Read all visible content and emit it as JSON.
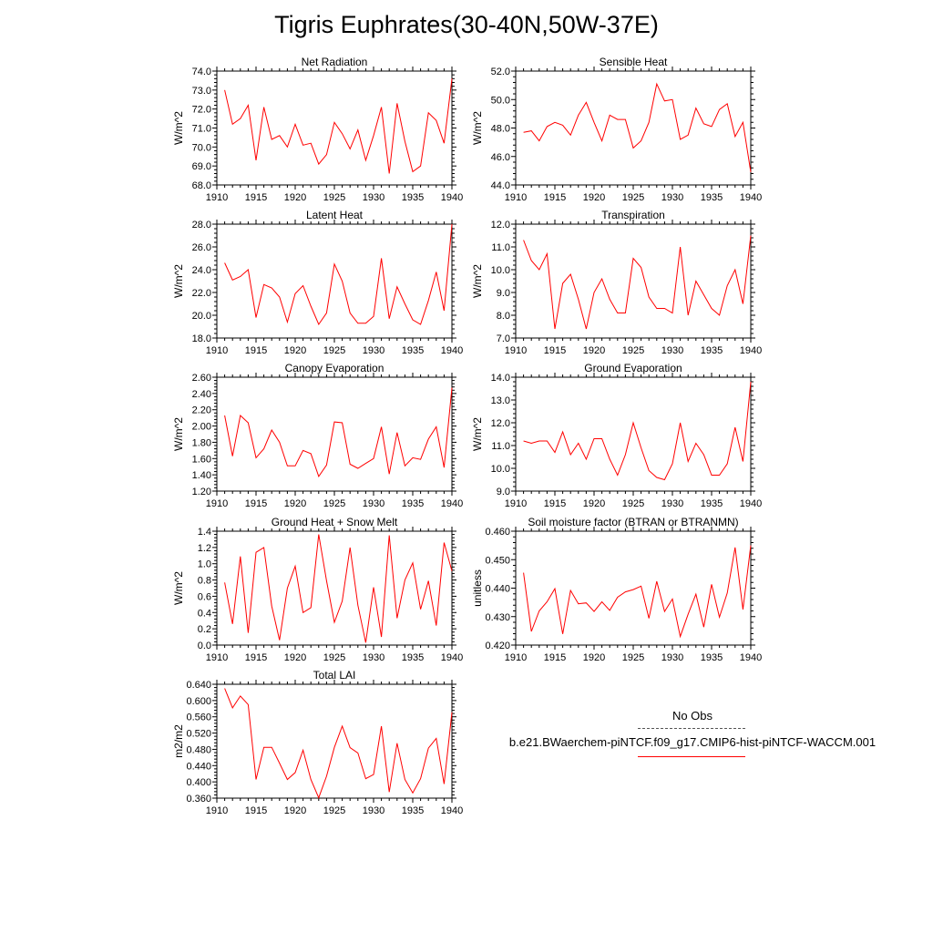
{
  "title": "Tigris Euphrates(30-40N,50W-37E)",
  "line_color": "#ff0000",
  "legend": {
    "obs_label": "No Obs",
    "case_label": "b.e21.BWaerchem-piNTCF.f09_g17.CMIP6-hist-piNTCF-WACCM.001"
  },
  "chart_data": [
    {
      "type": "line",
      "title": "Net Radiation",
      "xlabel": "",
      "ylabel": "W/m^2",
      "xlim": [
        1910,
        1940
      ],
      "ylim": [
        68.0,
        74.0
      ],
      "xticks": [
        1910,
        1915,
        1920,
        1925,
        1930,
        1935,
        1940
      ],
      "yticks": [
        "68.0",
        "69.0",
        "70.0",
        "71.0",
        "72.0",
        "73.0",
        "74.0"
      ],
      "x": [
        1911,
        1912,
        1913,
        1914,
        1915,
        1916,
        1917,
        1918,
        1919,
        1920,
        1921,
        1922,
        1923,
        1924,
        1925,
        1926,
        1927,
        1928,
        1929,
        1930,
        1931,
        1932,
        1933,
        1934,
        1935,
        1936,
        1937,
        1938,
        1939,
        1940
      ],
      "values": [
        73.0,
        71.2,
        71.5,
        72.2,
        69.3,
        72.1,
        70.4,
        70.6,
        70.0,
        71.2,
        70.1,
        70.2,
        69.1,
        69.6,
        71.3,
        70.7,
        69.9,
        70.9,
        69.3,
        70.6,
        72.1,
        68.6,
        72.3,
        70.3,
        68.7,
        69.0,
        71.8,
        71.4,
        70.2,
        73.6
      ]
    },
    {
      "type": "line",
      "title": "Sensible Heat",
      "xlabel": "",
      "ylabel": "W/m^2",
      "xlim": [
        1910,
        1940
      ],
      "ylim": [
        44.0,
        52.0
      ],
      "xticks": [
        1910,
        1915,
        1920,
        1925,
        1930,
        1935,
        1940
      ],
      "yticks": [
        "44.0",
        "46.0",
        "48.0",
        "50.0",
        "52.0"
      ],
      "x": [
        1911,
        1912,
        1913,
        1914,
        1915,
        1916,
        1917,
        1918,
        1919,
        1920,
        1921,
        1922,
        1923,
        1924,
        1925,
        1926,
        1927,
        1928,
        1929,
        1930,
        1931,
        1932,
        1933,
        1934,
        1935,
        1936,
        1937,
        1938,
        1939,
        1940
      ],
      "values": [
        47.7,
        47.8,
        47.1,
        48.1,
        48.4,
        48.2,
        47.5,
        48.9,
        49.8,
        48.4,
        47.1,
        48.9,
        48.6,
        48.6,
        46.6,
        47.1,
        48.4,
        51.1,
        49.9,
        50.0,
        47.2,
        47.5,
        49.4,
        48.3,
        48.1,
        49.3,
        49.7,
        47.4,
        48.4,
        44.9
      ]
    },
    {
      "type": "line",
      "title": "Latent Heat",
      "xlabel": "",
      "ylabel": "W/m^2",
      "xlim": [
        1910,
        1940
      ],
      "ylim": [
        18.0,
        28.0
      ],
      "xticks": [
        1910,
        1915,
        1920,
        1925,
        1930,
        1935,
        1940
      ],
      "yticks": [
        "18.0",
        "20.0",
        "22.0",
        "24.0",
        "26.0",
        "28.0"
      ],
      "x": [
        1911,
        1912,
        1913,
        1914,
        1915,
        1916,
        1917,
        1918,
        1919,
        1920,
        1921,
        1922,
        1923,
        1924,
        1925,
        1926,
        1927,
        1928,
        1929,
        1930,
        1931,
        1932,
        1933,
        1934,
        1935,
        1936,
        1937,
        1938,
        1939,
        1940
      ],
      "values": [
        24.6,
        23.1,
        23.4,
        24.0,
        19.8,
        22.7,
        22.4,
        21.6,
        19.4,
        21.9,
        22.6,
        20.8,
        19.2,
        20.2,
        24.5,
        23.0,
        20.2,
        19.3,
        19.3,
        19.9,
        25.0,
        19.7,
        22.5,
        21.0,
        19.6,
        19.2,
        21.3,
        23.8,
        20.4,
        28.0
      ]
    },
    {
      "type": "line",
      "title": "Transpiration",
      "xlabel": "",
      "ylabel": "W/m^2",
      "xlim": [
        1910,
        1940
      ],
      "ylim": [
        7.0,
        12.0
      ],
      "xticks": [
        1910,
        1915,
        1920,
        1925,
        1930,
        1935,
        1940
      ],
      "yticks": [
        "7.0",
        "8.0",
        "9.0",
        "10.0",
        "11.0",
        "12.0"
      ],
      "x": [
        1911,
        1912,
        1913,
        1914,
        1915,
        1916,
        1917,
        1918,
        1919,
        1920,
        1921,
        1922,
        1923,
        1924,
        1925,
        1926,
        1927,
        1928,
        1929,
        1930,
        1931,
        1932,
        1933,
        1934,
        1935,
        1936,
        1937,
        1938,
        1939,
        1940
      ],
      "values": [
        11.3,
        10.4,
        10.0,
        10.7,
        7.4,
        9.4,
        9.8,
        8.7,
        7.4,
        9.0,
        9.6,
        8.7,
        8.1,
        8.1,
        10.5,
        10.1,
        8.8,
        8.3,
        8.3,
        8.1,
        11.0,
        8.0,
        9.5,
        8.9,
        8.3,
        8.0,
        9.3,
        10.0,
        8.5,
        11.5
      ]
    },
    {
      "type": "line",
      "title": "Canopy Evaporation",
      "xlabel": "",
      "ylabel": "W/m^2",
      "xlim": [
        1910,
        1940
      ],
      "ylim": [
        1.2,
        2.6
      ],
      "xticks": [
        1910,
        1915,
        1920,
        1925,
        1930,
        1935,
        1940
      ],
      "yticks": [
        "1.20",
        "1.40",
        "1.60",
        "1.80",
        "2.00",
        "2.20",
        "2.40",
        "2.60"
      ],
      "x": [
        1911,
        1912,
        1913,
        1914,
        1915,
        1916,
        1917,
        1918,
        1919,
        1920,
        1921,
        1922,
        1923,
        1924,
        1925,
        1926,
        1927,
        1928,
        1929,
        1930,
        1931,
        1932,
        1933,
        1934,
        1935,
        1936,
        1937,
        1938,
        1939,
        1940
      ],
      "values": [
        2.13,
        1.63,
        2.13,
        2.04,
        1.61,
        1.72,
        1.95,
        1.8,
        1.51,
        1.51,
        1.7,
        1.66,
        1.38,
        1.52,
        2.05,
        2.04,
        1.53,
        1.48,
        1.54,
        1.6,
        1.99,
        1.41,
        1.92,
        1.51,
        1.61,
        1.59,
        1.84,
        1.99,
        1.49,
        2.47
      ]
    },
    {
      "type": "line",
      "title": "Ground Evaporation",
      "xlabel": "",
      "ylabel": "W/m^2",
      "xlim": [
        1910,
        1940
      ],
      "ylim": [
        9.0,
        14.0
      ],
      "xticks": [
        1910,
        1915,
        1920,
        1925,
        1930,
        1935,
        1940
      ],
      "yticks": [
        "9.0",
        "10.0",
        "11.0",
        "12.0",
        "13.0",
        "14.0"
      ],
      "x": [
        1911,
        1912,
        1913,
        1914,
        1915,
        1916,
        1917,
        1918,
        1919,
        1920,
        1921,
        1922,
        1923,
        1924,
        1925,
        1926,
        1927,
        1928,
        1929,
        1930,
        1931,
        1932,
        1933,
        1934,
        1935,
        1936,
        1937,
        1938,
        1939,
        1940
      ],
      "values": [
        11.2,
        11.1,
        11.2,
        11.2,
        10.7,
        11.6,
        10.6,
        11.1,
        10.4,
        11.3,
        11.3,
        10.4,
        9.7,
        10.6,
        12.0,
        10.9,
        9.9,
        9.6,
        9.5,
        10.2,
        12.0,
        10.3,
        11.1,
        10.6,
        9.7,
        9.7,
        10.2,
        11.8,
        10.3,
        13.8
      ]
    },
    {
      "type": "line",
      "title": "Ground Heat + Snow Melt",
      "xlabel": "",
      "ylabel": "W/m^2",
      "xlim": [
        1910,
        1940
      ],
      "ylim": [
        0.0,
        1.4
      ],
      "xticks": [
        1910,
        1915,
        1920,
        1925,
        1930,
        1935,
        1940
      ],
      "yticks": [
        "0.0",
        "0.2",
        "0.4",
        "0.6",
        "0.8",
        "1.0",
        "1.2",
        "1.4"
      ],
      "x": [
        1911,
        1912,
        1913,
        1914,
        1915,
        1916,
        1917,
        1918,
        1919,
        1920,
        1921,
        1922,
        1923,
        1924,
        1925,
        1926,
        1927,
        1928,
        1929,
        1930,
        1931,
        1932,
        1933,
        1934,
        1935,
        1936,
        1937,
        1938,
        1939,
        1940
      ],
      "values": [
        0.77,
        0.26,
        1.09,
        0.15,
        1.14,
        1.2,
        0.48,
        0.06,
        0.7,
        0.97,
        0.4,
        0.46,
        1.36,
        0.79,
        0.28,
        0.54,
        1.2,
        0.49,
        0.03,
        0.71,
        0.1,
        1.35,
        0.33,
        0.8,
        1.01,
        0.44,
        0.79,
        0.24,
        1.26,
        0.91
      ]
    },
    {
      "type": "line",
      "title": "Soil moisture factor (BTRAN or BTRANMN)",
      "xlabel": "",
      "ylabel": "unitless",
      "xlim": [
        1910,
        1940
      ],
      "ylim": [
        0.42,
        0.46
      ],
      "xticks": [
        1910,
        1915,
        1920,
        1925,
        1930,
        1935,
        1940
      ],
      "yticks": [
        "0.420",
        "0.430",
        "0.440",
        "0.450",
        "0.460"
      ],
      "x": [
        1911,
        1912,
        1913,
        1914,
        1915,
        1916,
        1917,
        1918,
        1919,
        1920,
        1921,
        1922,
        1923,
        1924,
        1925,
        1926,
        1927,
        1928,
        1929,
        1930,
        1931,
        1932,
        1933,
        1934,
        1935,
        1936,
        1937,
        1938,
        1939,
        1940
      ],
      "values": [
        0.4454,
        0.4248,
        0.432,
        0.4352,
        0.4398,
        0.4239,
        0.4392,
        0.4345,
        0.4348,
        0.4318,
        0.4352,
        0.4322,
        0.4368,
        0.4387,
        0.4395,
        0.4407,
        0.4294,
        0.4424,
        0.4318,
        0.4362,
        0.423,
        0.4308,
        0.4379,
        0.4263,
        0.4413,
        0.4298,
        0.4383,
        0.4543,
        0.4325,
        0.455
      ]
    },
    {
      "type": "line",
      "title": "Total LAI",
      "xlabel": "",
      "ylabel": "m2/m2",
      "xlim": [
        1910,
        1940
      ],
      "ylim": [
        0.36,
        0.64
      ],
      "xticks": [
        1910,
        1915,
        1920,
        1925,
        1930,
        1935,
        1940
      ],
      "yticks": [
        "0.360",
        "0.400",
        "0.440",
        "0.480",
        "0.520",
        "0.560",
        "0.600",
        "0.640"
      ],
      "x": [
        1911,
        1912,
        1913,
        1914,
        1915,
        1916,
        1917,
        1918,
        1919,
        1920,
        1921,
        1922,
        1923,
        1924,
        1925,
        1926,
        1927,
        1928,
        1929,
        1930,
        1931,
        1932,
        1933,
        1934,
        1935,
        1936,
        1937,
        1938,
        1939,
        1940
      ],
      "values": [
        0.63,
        0.582,
        0.611,
        0.59,
        0.406,
        0.485,
        0.485,
        0.446,
        0.406,
        0.423,
        0.478,
        0.406,
        0.361,
        0.414,
        0.485,
        0.537,
        0.484,
        0.471,
        0.408,
        0.418,
        0.537,
        0.375,
        0.495,
        0.406,
        0.373,
        0.408,
        0.483,
        0.507,
        0.395,
        0.571
      ]
    }
  ]
}
